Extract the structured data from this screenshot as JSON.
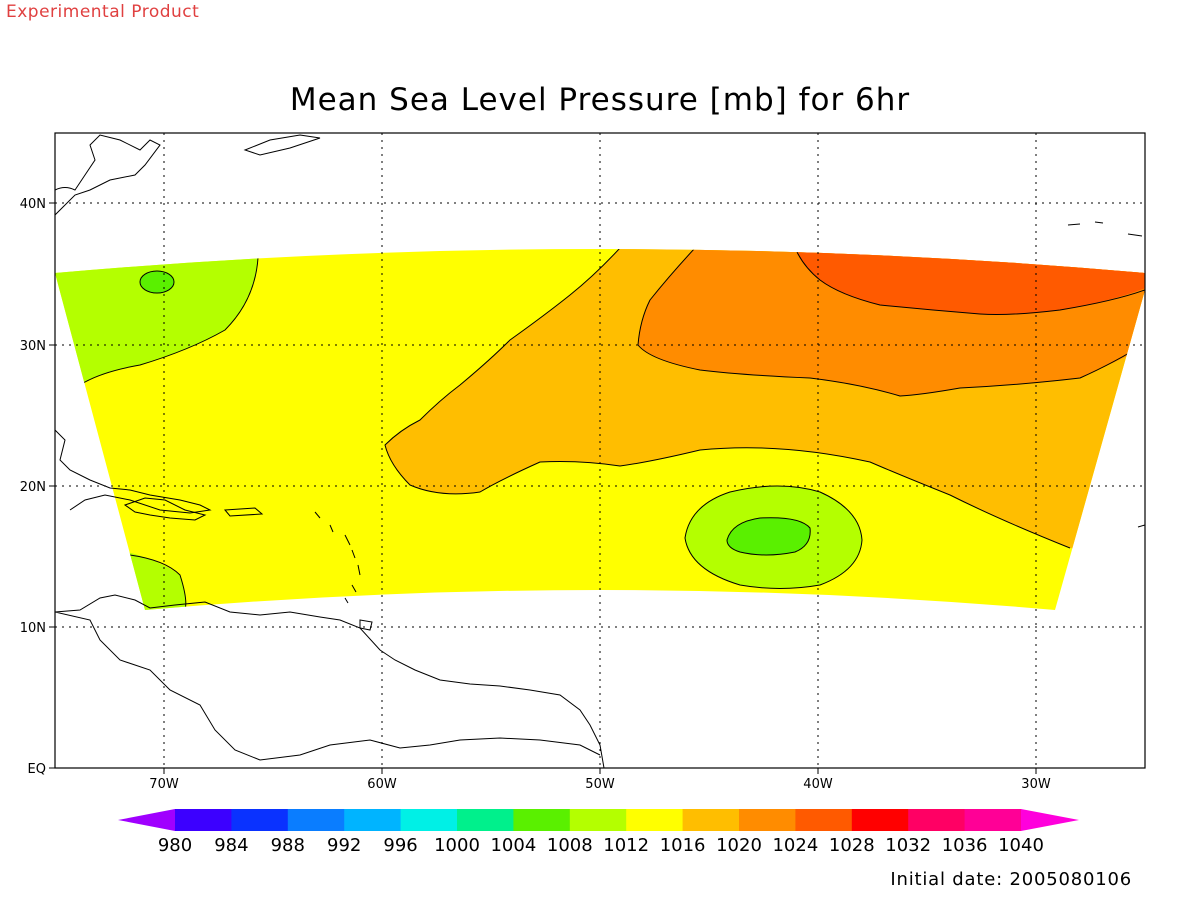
{
  "header": {
    "experimental_label": "Experimental Product",
    "title": "Mean Sea Level Pressure [mb] for 6hr"
  },
  "footer": {
    "initial_date": "Initial date: 2005080106"
  },
  "map": {
    "lon_range": [
      -75,
      -25
    ],
    "lat_range": [
      0,
      45
    ],
    "lon_ticks": [
      {
        "value": -70,
        "label": "70W"
      },
      {
        "value": -60,
        "label": "60W"
      },
      {
        "value": -50,
        "label": "50W"
      },
      {
        "value": -40,
        "label": "40W"
      },
      {
        "value": -30,
        "label": "30W"
      }
    ],
    "lat_ticks": [
      {
        "value": 0,
        "label": "EQ"
      },
      {
        "value": 10,
        "label": "10N"
      },
      {
        "value": 20,
        "label": "20N"
      },
      {
        "value": 30,
        "label": "30N"
      },
      {
        "value": 40,
        "label": "40N"
      }
    ],
    "gridlines": "dotted"
  },
  "colorbar": {
    "labels": [
      "980",
      "984",
      "988",
      "992",
      "996",
      "1000",
      "1004",
      "1008",
      "1012",
      "1016",
      "1020",
      "1024",
      "1028",
      "1032",
      "1036",
      "1040"
    ],
    "colors": [
      "#a000ff",
      "#3c00ff",
      "#0a32ff",
      "#0a7dff",
      "#00b4ff",
      "#00f0e6",
      "#00f08c",
      "#5af000",
      "#b4ff00",
      "#ffff00",
      "#ffbe00",
      "#ff8c00",
      "#ff5a00",
      "#ff0000",
      "#ff0064",
      "#ff0096",
      "#ff00dc"
    ]
  },
  "field_colors": {
    "p1008_1012": "#b4ff00",
    "p1004_1008": "#5af000",
    "p1012_1016": "#ffff00",
    "p1016_1020": "#ffbe00",
    "p1020_1024": "#ff8c00",
    "p1024_1028": "#ff5a00"
  }
}
